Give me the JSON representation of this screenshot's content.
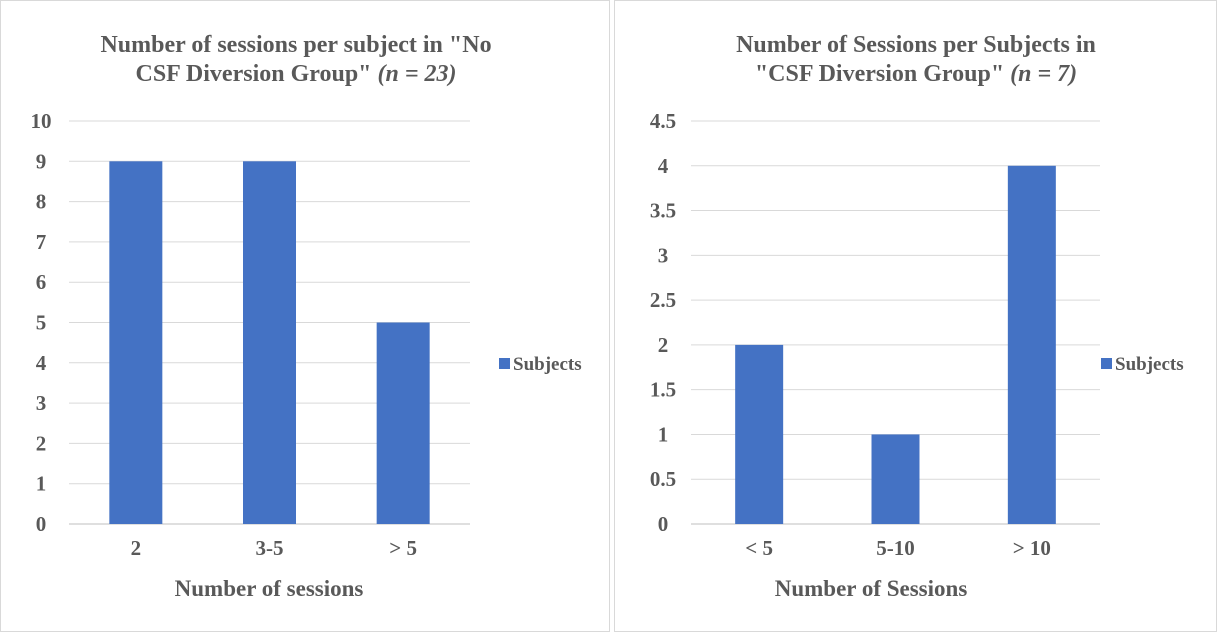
{
  "chart_data": [
    {
      "type": "bar",
      "title_lines": [
        "Number of sessions per subject in \"No",
        "CSF Diversion Group\""
      ],
      "title_n": "(n = 23)",
      "categories": [
        "2",
        "3-5",
        "> 5"
      ],
      "series": [
        {
          "name": "Subjects",
          "values": [
            9,
            9,
            5
          ],
          "color": "#4472c4"
        }
      ],
      "xlabel": "Number of sessions",
      "ylabel": "",
      "ylim": [
        0,
        10
      ],
      "yticks": [
        "0",
        "1",
        "2",
        "3",
        "4",
        "5",
        "6",
        "7",
        "8",
        "9",
        "10"
      ],
      "grid": true,
      "legend_position": "right"
    },
    {
      "type": "bar",
      "title_lines": [
        "Number of Sessions per Subjects in",
        "\"CSF Diversion Group\""
      ],
      "title_n": "(n = 7)",
      "categories": [
        "< 5",
        "5-10",
        "> 10"
      ],
      "series": [
        {
          "name": "Subjects",
          "values": [
            2,
            1,
            4
          ],
          "color": "#4472c4"
        }
      ],
      "xlabel": "Number of Sessions",
      "ylabel": "",
      "ylim": [
        0,
        4.5
      ],
      "yticks": [
        "0",
        "0.5",
        "1",
        "1.5",
        "2",
        "2.5",
        "3",
        "3.5",
        "4",
        "4.5"
      ],
      "grid": true,
      "legend_position": "right"
    }
  ]
}
